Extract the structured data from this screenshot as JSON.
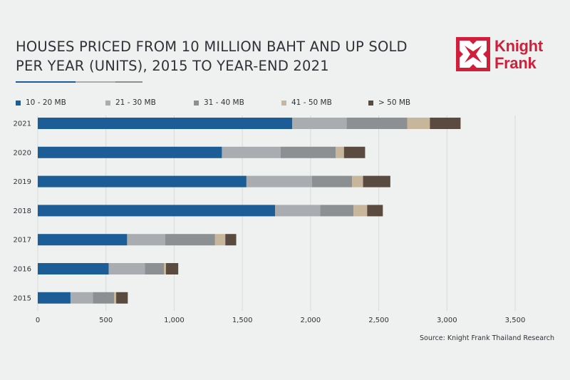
{
  "header": {
    "title_line1": "HOUSES PRICED FROM 10 MILLION BAHT AND UP SOLD",
    "title_line2": "PER YEAR (UNITS), 2015 TO YEAR-END 2021"
  },
  "logo": {
    "text_line1": "Knight",
    "text_line2": "Frank",
    "color": "#d11f3b"
  },
  "source": "Source: Knight Frank Thailand Research",
  "colors": {
    "background": "#eef1ef",
    "gridline": "#d7dbd8",
    "text": "#2f3237"
  },
  "chart_data": {
    "type": "bar",
    "orientation": "horizontal",
    "stacked": true,
    "title": "HOUSES PRICED FROM 10 MILLION BAHT AND UP SOLD PER YEAR (UNITS), 2015 TO YEAR-END 2021",
    "categories": [
      "2021",
      "2020",
      "2019",
      "2018",
      "2017",
      "2016",
      "2015"
    ],
    "series": [
      {
        "name": "10 - 20 MB",
        "color": "#1c5d98",
        "values": [
          1865,
          1350,
          1530,
          1740,
          655,
          520,
          240
        ]
      },
      {
        "name": "21 - 30 MB",
        "color": "#a9adb1",
        "values": [
          400,
          430,
          480,
          330,
          280,
          265,
          165
        ]
      },
      {
        "name": "31 - 40 MB",
        "color": "#8c9093",
        "values": [
          445,
          405,
          295,
          245,
          365,
          140,
          155
        ]
      },
      {
        "name": "41 - 50 MB",
        "color": "#c8b69c",
        "values": [
          165,
          60,
          80,
          100,
          75,
          15,
          15
        ]
      },
      {
        "name": "> 50 MB",
        "color": "#5b4a40",
        "values": [
          225,
          155,
          200,
          115,
          80,
          90,
          85
        ]
      }
    ],
    "x_ticks": [
      "0",
      "500",
      "1,000",
      "1,500",
      "2,000",
      "2,500",
      "3,000",
      "3,500"
    ],
    "xlim": [
      0,
      3500
    ],
    "xlabel": "",
    "ylabel": "",
    "grid": true,
    "legend": "top"
  }
}
